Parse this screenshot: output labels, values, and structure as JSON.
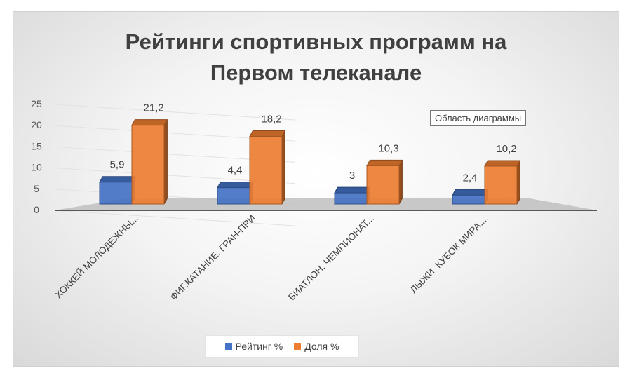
{
  "chart_data": {
    "type": "bar",
    "title": "Рейтинги спортивных программ на Первом телеканале",
    "title_lines": [
      "Рейтинги спортивных программ на",
      "Первом телеканале"
    ],
    "categories": [
      "ХОККЕЙ.МОЛОДЕЖНЫ...",
      "ФИГ.КАТАНИЕ. ГРАН-ПРИ",
      "БИАТЛОН. ЧЕМПИОНАТ...",
      "ЛЫЖИ. КУБОК МИРА...."
    ],
    "series": [
      {
        "name": "Рейтинг %",
        "values": [
          5.9,
          4.4,
          3,
          2.4
        ],
        "labels": [
          "5,9",
          "4,4",
          "3",
          "2,4"
        ],
        "color": "#4472C4"
      },
      {
        "name": "Доля %",
        "values": [
          21.2,
          18.2,
          10.3,
          10.2
        ],
        "labels": [
          "21,2",
          "18,2",
          "10,3",
          "10,2"
        ],
        "color": "#ED7D31"
      }
    ],
    "yticks": [
      "0",
      "5",
      "10",
      "15",
      "20",
      "25"
    ],
    "ylim": [
      0,
      25
    ],
    "grid": true,
    "legend_position": "bottom",
    "style": "3d-clustered-column"
  },
  "tooltip": "Область диаграммы"
}
